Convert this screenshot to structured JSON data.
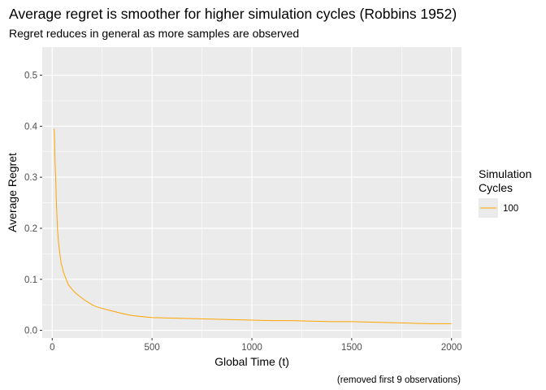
{
  "chart_data": {
    "type": "line",
    "title": "Average regret is smoother for higher simulation cycles (Robbins 1952)",
    "subtitle": "Regret reduces in general as more samples are observed",
    "xlabel": "Global Time (t)",
    "ylabel": "Average Regret",
    "caption": "(removed first 9 observations)",
    "xlim": [
      -50,
      2050
    ],
    "ylim": [
      -0.015,
      0.555
    ],
    "x_ticks": [
      0,
      500,
      1000,
      1500,
      2000
    ],
    "x_tick_labels": [
      "0",
      "500",
      "1000",
      "1500",
      "2000"
    ],
    "y_ticks": [
      0.0,
      0.1,
      0.2,
      0.3,
      0.4,
      0.5
    ],
    "y_tick_labels": [
      "0.0",
      "0.1",
      "0.2",
      "0.3",
      "0.4",
      "0.5"
    ],
    "grid": true,
    "panel_background": "#ebebeb",
    "legend": {
      "title_line1": "Simulation",
      "title_line2": "Cycles",
      "position": "right",
      "entries": [
        {
          "label": "100",
          "color": "#ffa500"
        }
      ]
    },
    "series": [
      {
        "name": "100",
        "color": "#ffa500",
        "x": [
          10,
          12,
          14,
          16,
          18,
          20,
          22,
          25,
          28,
          31,
          35,
          40,
          45,
          50,
          55,
          60,
          70,
          80,
          90,
          100,
          120,
          140,
          160,
          180,
          200,
          230,
          260,
          300,
          350,
          400,
          450,
          500,
          600,
          700,
          800,
          900,
          1000,
          1100,
          1200,
          1300,
          1400,
          1500,
          1600,
          1700,
          1800,
          1900,
          2000
        ],
        "y": [
          0.395,
          0.37,
          0.33,
          0.31,
          0.29,
          0.26,
          0.24,
          0.21,
          0.19,
          0.175,
          0.16,
          0.145,
          0.13,
          0.125,
          0.115,
          0.11,
          0.1,
          0.09,
          0.085,
          0.08,
          0.072,
          0.066,
          0.06,
          0.055,
          0.05,
          0.045,
          0.042,
          0.038,
          0.033,
          0.029,
          0.027,
          0.025,
          0.024,
          0.023,
          0.022,
          0.021,
          0.02,
          0.019,
          0.019,
          0.018,
          0.017,
          0.017,
          0.016,
          0.015,
          0.014,
          0.013,
          0.013
        ]
      }
    ]
  }
}
